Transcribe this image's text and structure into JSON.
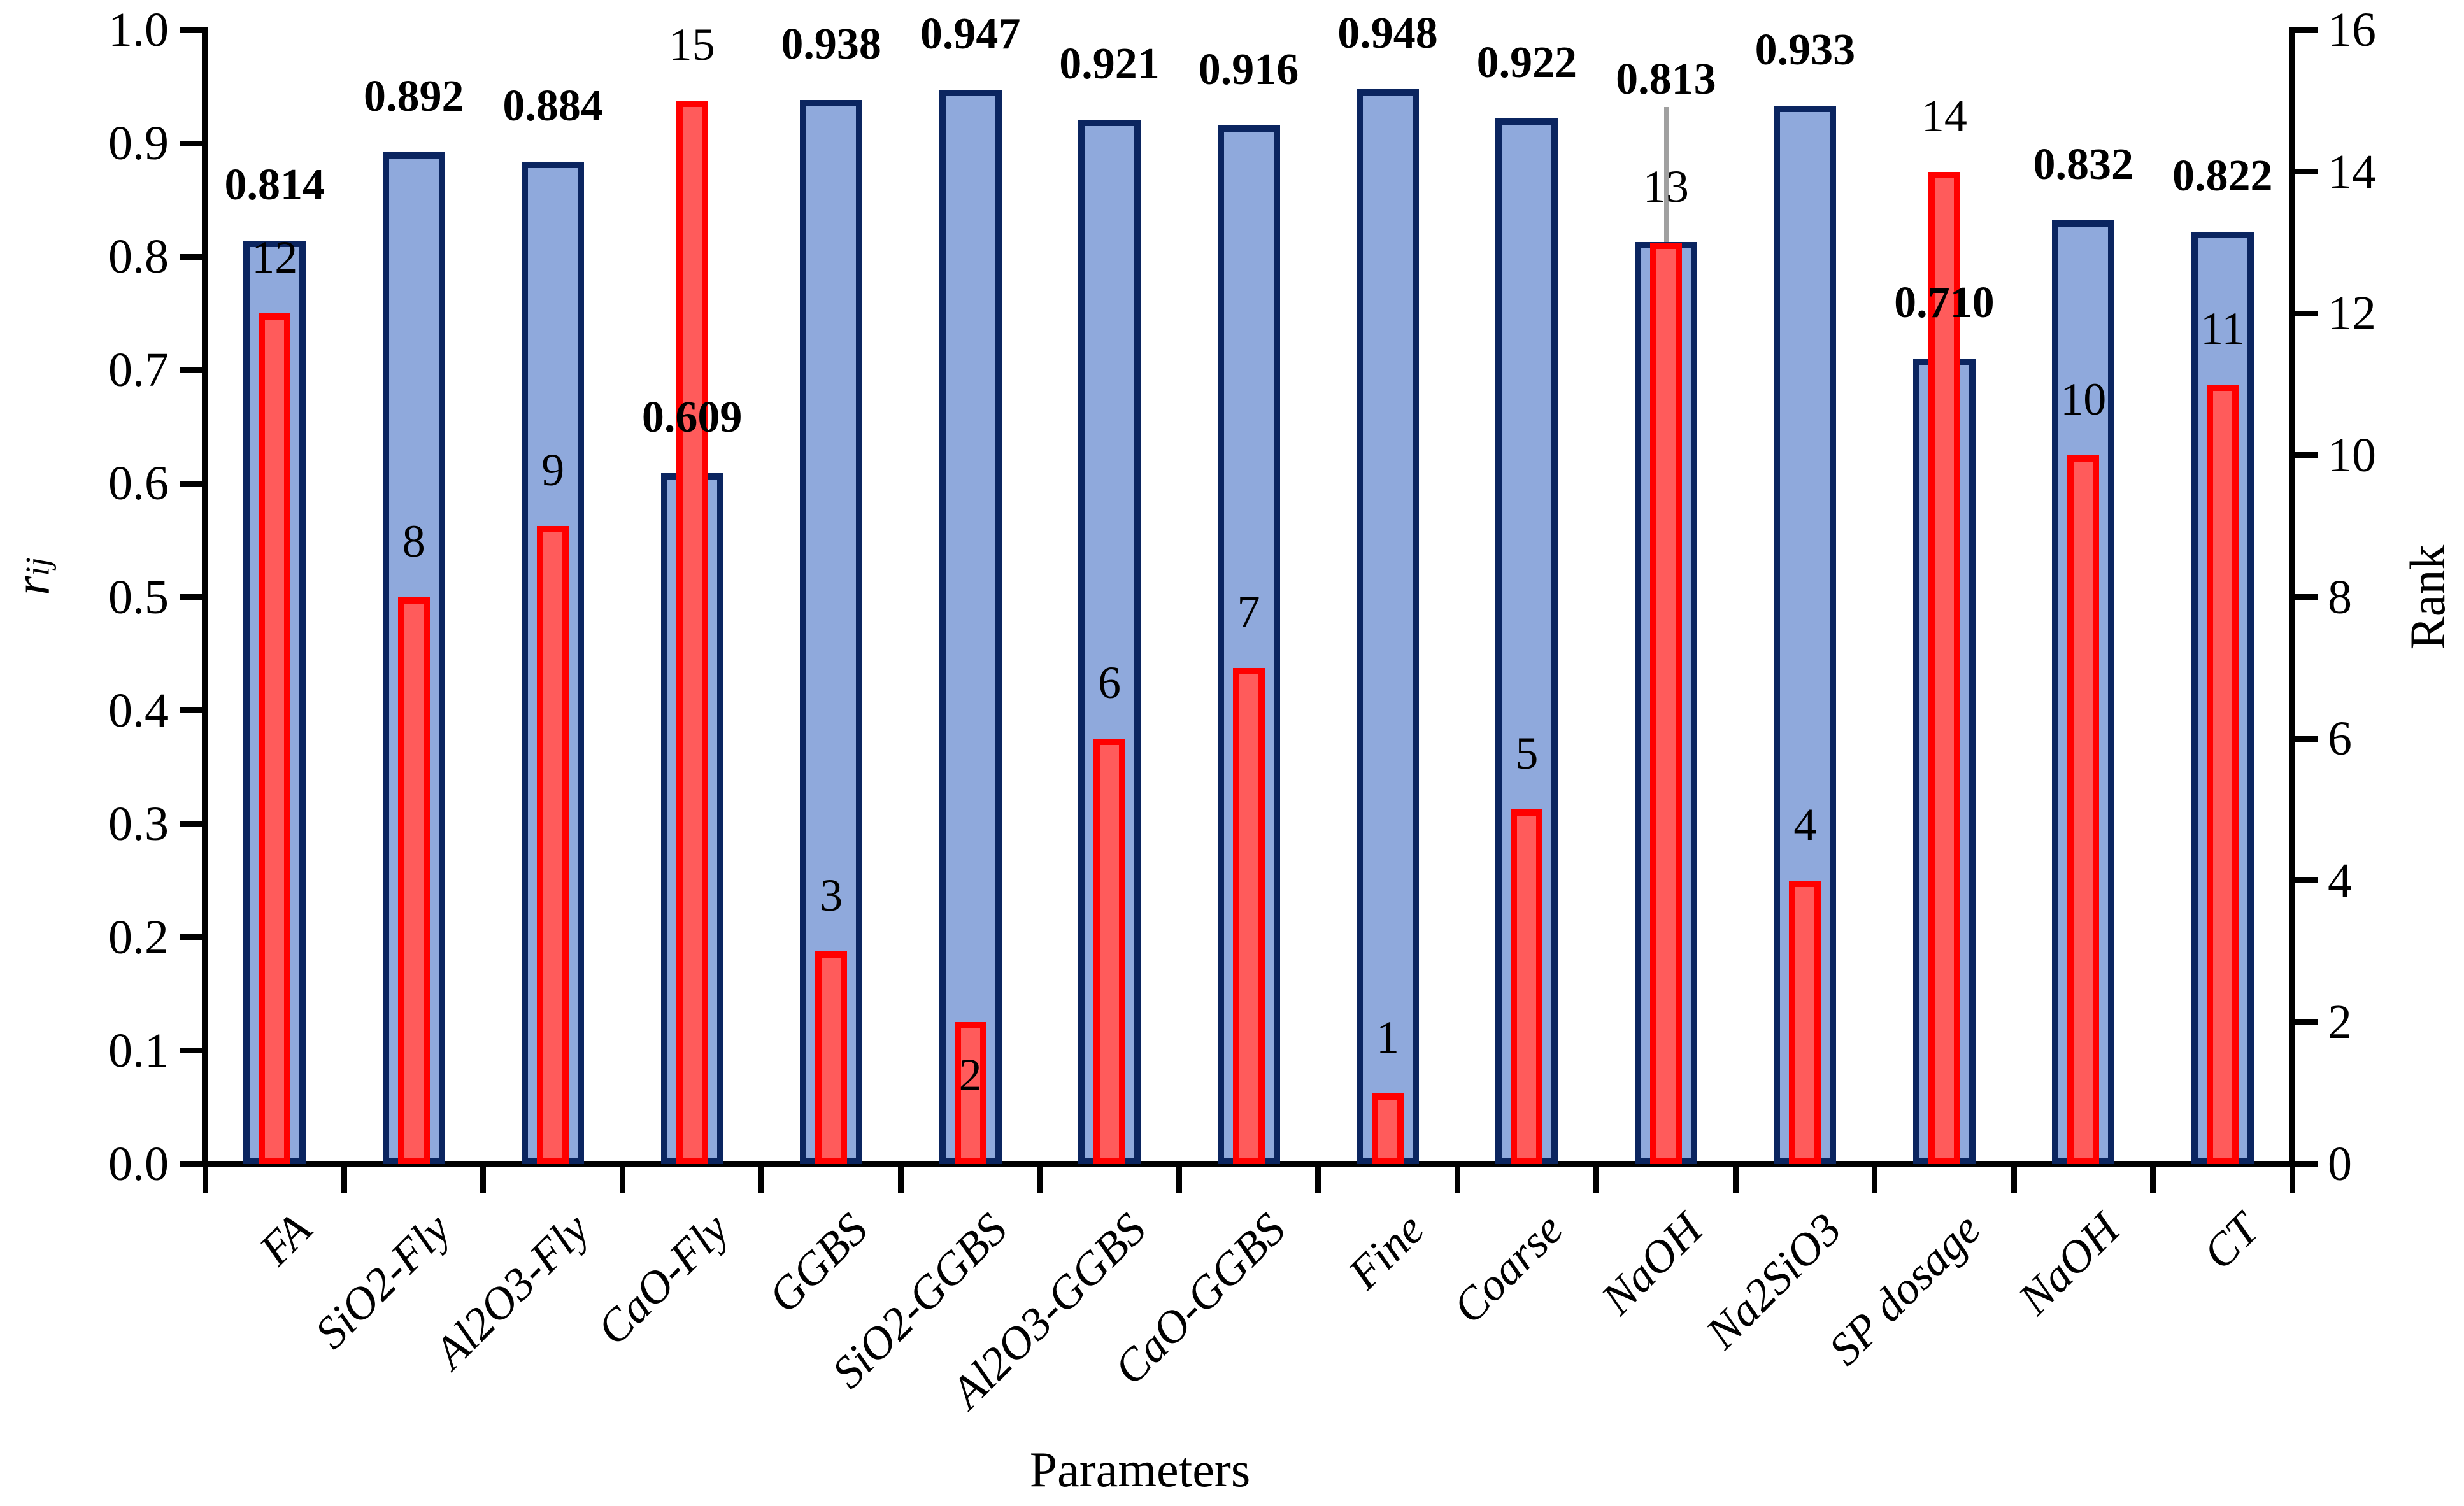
{
  "chart_data": {
    "type": "bar",
    "title": "",
    "xlabel": "Parameters",
    "ylabel_left": {
      "base": "r",
      "sub": "ij"
    },
    "ylabel_right": "Rank",
    "ylim_left": [
      0.0,
      1.0
    ],
    "ylim_right": [
      0,
      16
    ],
    "yticks_left": [
      "0.0",
      "0.1",
      "0.2",
      "0.3",
      "0.4",
      "0.5",
      "0.6",
      "0.7",
      "0.8",
      "0.9",
      "1.0"
    ],
    "yticks_right": [
      "0",
      "2",
      "4",
      "6",
      "8",
      "10",
      "12",
      "14",
      "16"
    ],
    "grid": false,
    "legend": "none",
    "categories": [
      "FA",
      "SiO2-Fly",
      "Al2O3-Fly",
      "CaO-Fly",
      "GGBS",
      "SiO2-GGBS",
      "Al2O3-GGBS",
      "CaO-GGBS",
      "Fine",
      "Coarse",
      "NaOH",
      "Na2SiO3",
      "SP dosage",
      "NaOH",
      "CT"
    ],
    "series": [
      {
        "name": "rij",
        "axis": "left",
        "values": [
          0.814,
          0.892,
          0.884,
          0.609,
          0.938,
          0.947,
          0.921,
          0.916,
          0.948,
          0.922,
          0.813,
          0.933,
          0.71,
          0.832,
          0.822
        ],
        "labels": [
          "0.814",
          "0.892",
          "0.884",
          "0.609",
          "0.938",
          "0.947",
          "0.921",
          "0.916",
          "0.948",
          "0.922",
          "0.813",
          "0.933",
          "0.710",
          "0.832",
          "0.822"
        ]
      },
      {
        "name": "Rank",
        "axis": "right",
        "values": [
          12,
          8,
          9,
          15,
          3,
          2,
          6,
          7,
          1,
          5,
          13,
          4,
          14,
          10,
          11
        ],
        "labels": [
          "12",
          "8",
          "9",
          "15",
          "3",
          "2",
          "6",
          "7",
          "1",
          "5",
          "13",
          "4",
          "14",
          "10",
          "11"
        ]
      }
    ],
    "annotations": {
      "rank_label_inside_indices": [
        5
      ],
      "value_label_raised_index": 10,
      "leader_line_category": "NaOH",
      "leader_line_color": "#A0A0A0"
    }
  },
  "colors": {
    "background": "#FFFFFF",
    "text": "#000000",
    "axis": "#000000",
    "blue_fill": "#8FA9DC",
    "blue_border": "#0B2560",
    "red_fill": "#FF5B5B",
    "red_border": "#FF0000",
    "leader_gray": "#A0A0A0"
  }
}
